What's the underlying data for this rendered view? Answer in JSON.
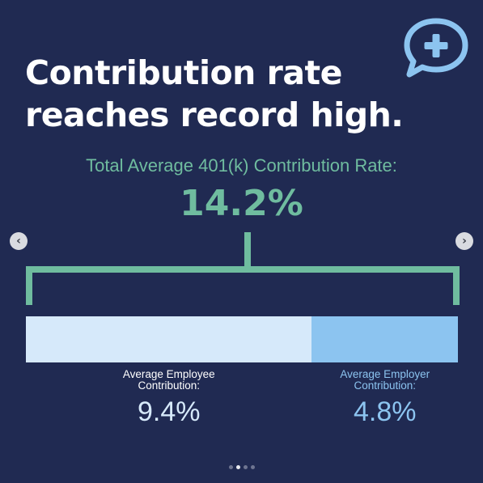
{
  "title_lines": [
    "Contribution rate",
    "reaches record high."
  ],
  "logo": {
    "icon": "speech-bubble-plus-icon",
    "color": "#8cc4f0",
    "cross_color": "#202a52"
  },
  "nav": {
    "prev_icon": "chevron-left-icon",
    "prev_glyph": "‹",
    "next_icon": "chevron-right-icon",
    "next_glyph": "›"
  },
  "carousel": {
    "dot_count": 4,
    "active_index": 1
  },
  "colors": {
    "background": "#202a52",
    "accent": "#6fbc9f",
    "employee": "#d6e9fa",
    "employer": "#8cc4f0",
    "employer_text": "#8cc4f0",
    "employee_text": "#ffffff",
    "employee_value_text": "#d6e9fa"
  },
  "chart_data": {
    "type": "bar",
    "subtype": "stacked-horizontal",
    "title": "Total Average 401(k) Contribution Rate:",
    "total_label": "14.2%",
    "total": 14.2,
    "unit": "%",
    "series": [
      {
        "name": "Average Employee Contribution:",
        "value": 9.4,
        "value_label": "9.4%"
      },
      {
        "name": "Average Employer Contribution:",
        "value": 4.8,
        "value_label": "4.8%"
      }
    ]
  }
}
